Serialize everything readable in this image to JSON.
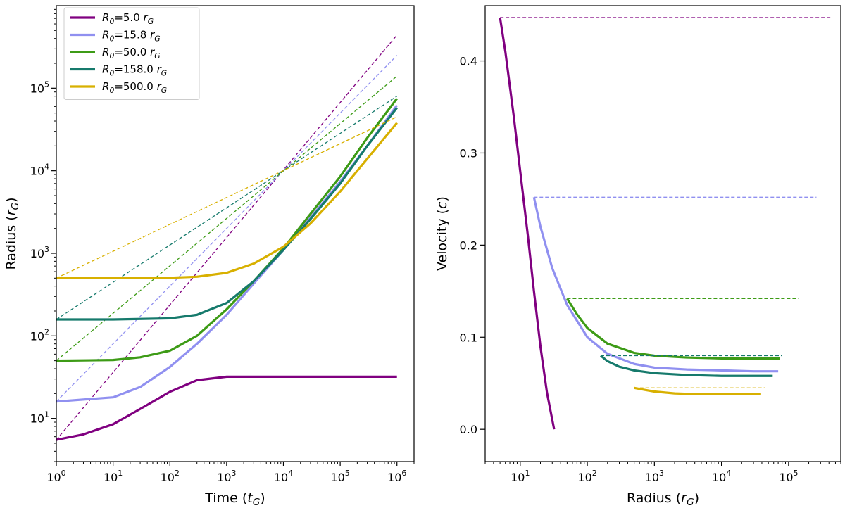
{
  "chart_data": [
    {
      "type": "line",
      "xlabel": "Time ($t_G$)",
      "ylabel": "Radius ($r_G$)",
      "xscale": "log",
      "yscale": "log",
      "xlim": [
        1,
        2000000
      ],
      "ylim": [
        3,
        1000000
      ],
      "xticks": [
        {
          "value": 1,
          "base": "10",
          "exp": "0"
        },
        {
          "value": 10,
          "base": "10",
          "exp": "1"
        },
        {
          "value": 100,
          "base": "10",
          "exp": "2"
        },
        {
          "value": 1000,
          "base": "10",
          "exp": "3"
        },
        {
          "value": 10000,
          "base": "10",
          "exp": "4"
        },
        {
          "value": 100000,
          "base": "10",
          "exp": "5"
        },
        {
          "value": 1000000,
          "base": "10",
          "exp": "6"
        }
      ],
      "yticks": [
        {
          "value": 10,
          "base": "10",
          "exp": "1"
        },
        {
          "value": 100,
          "base": "10",
          "exp": "2"
        },
        {
          "value": 1000,
          "base": "10",
          "exp": "3"
        },
        {
          "value": 10000,
          "base": "10",
          "exp": "4"
        },
        {
          "value": 100000,
          "base": "10",
          "exp": "5"
        }
      ],
      "legend": {
        "placement": "upper-left"
      },
      "series": [
        {
          "name": "$R_0$=5.0 $r_G$",
          "color": "#800080",
          "dashed_end": 440000,
          "x": [
            1,
            3,
            10,
            30,
            100,
            300,
            1000,
            100000,
            1000000
          ],
          "y": [
            5.5,
            6.4,
            8.5,
            13,
            21,
            29,
            32,
            32,
            32
          ]
        },
        {
          "name": "$R_0$=15.8 $r_G$",
          "color": "#9090f0",
          "dashed_end": 250000,
          "x": [
            1,
            10,
            30,
            100,
            300,
            1000,
            3000,
            10000,
            30000,
            100000,
            300000,
            1000000
          ],
          "y": [
            16,
            18,
            24,
            42,
            80,
            180,
            430,
            1100,
            2700,
            7400,
            20000,
            62000
          ]
        },
        {
          "name": "$R_0$=50.0 $r_G$",
          "color": "#3d9b16",
          "dashed_end": 140000,
          "x": [
            1,
            10,
            30,
            100,
            300,
            1000,
            3000,
            10000,
            30000,
            100000,
            300000,
            1000000
          ],
          "y": [
            50,
            51,
            55,
            66,
            100,
            210,
            460,
            1150,
            3000,
            8500,
            25000,
            75000
          ]
        },
        {
          "name": "$R_0$=158.0 $r_G$",
          "color": "#167a6c",
          "dashed_end": 80000,
          "x": [
            1,
            10,
            100,
            300,
            1000,
            3000,
            10000,
            30000,
            100000,
            300000,
            1000000
          ],
          "y": [
            158,
            158,
            163,
            180,
            250,
            460,
            1100,
            2600,
            7000,
            20000,
            58000
          ]
        },
        {
          "name": "$R_0$=500.0 $r_G$",
          "color": "#d8b000",
          "dashed_end": 45000,
          "x": [
            1,
            10,
            100,
            300,
            1000,
            3000,
            10000,
            30000,
            100000,
            300000,
            1000000
          ],
          "y": [
            500,
            500,
            505,
            520,
            580,
            750,
            1200,
            2300,
            5600,
            14000,
            38000
          ]
        }
      ]
    },
    {
      "type": "line",
      "xlabel": "Radius ($r_G$)",
      "ylabel": "Velocity ($c$)",
      "xscale": "log",
      "yscale": "linear",
      "xlim": [
        3,
        600000
      ],
      "ylim": [
        -0.035,
        0.46
      ],
      "xticks": [
        {
          "value": 10,
          "base": "10",
          "exp": "1"
        },
        {
          "value": 100,
          "base": "10",
          "exp": "2"
        },
        {
          "value": 1000,
          "base": "10",
          "exp": "3"
        },
        {
          "value": 10000,
          "base": "10",
          "exp": "4"
        },
        {
          "value": 100000,
          "base": "10",
          "exp": "5"
        }
      ],
      "yticks": [
        {
          "value": 0.0,
          "label": "0.0"
        },
        {
          "value": 0.1,
          "label": "0.1"
        },
        {
          "value": 0.2,
          "label": "0.2"
        },
        {
          "value": 0.3,
          "label": "0.3"
        },
        {
          "value": 0.4,
          "label": "0.4"
        }
      ],
      "series": [
        {
          "name": "$R_0$=5.0 $r_G$",
          "color": "#800080",
          "x": [
            5,
            6,
            8,
            10,
            13,
            16,
            20,
            25,
            32
          ],
          "y": [
            0.447,
            0.41,
            0.34,
            0.28,
            0.21,
            0.15,
            0.09,
            0.04,
            0.0
          ],
          "asymptote": {
            "y": 0.447,
            "x_start": 5,
            "x_end": 450000
          }
        },
        {
          "name": "$R_0$=15.8 $r_G$",
          "color": "#9090f0",
          "x": [
            16,
            20,
            30,
            50,
            100,
            200,
            500,
            1000,
            3000,
            10000,
            30000,
            70000
          ],
          "y": [
            0.252,
            0.22,
            0.175,
            0.135,
            0.1,
            0.082,
            0.071,
            0.067,
            0.065,
            0.064,
            0.063,
            0.063
          ],
          "asymptote": {
            "y": 0.252,
            "x_start": 16,
            "x_end": 260000
          }
        },
        {
          "name": "$R_0$=50.0 $r_G$",
          "color": "#3d9b16",
          "x": [
            50,
            70,
            100,
            200,
            500,
            1000,
            3000,
            10000,
            30000,
            75000
          ],
          "y": [
            0.142,
            0.125,
            0.11,
            0.093,
            0.083,
            0.08,
            0.078,
            0.077,
            0.077,
            0.077
          ],
          "asymptote": {
            "y": 0.142,
            "x_start": 50,
            "x_end": 140000
          }
        },
        {
          "name": "$R_0$=158.0 $r_G$",
          "color": "#167a6c",
          "x": [
            158,
            200,
            300,
            500,
            1000,
            3000,
            10000,
            30000,
            58000
          ],
          "y": [
            0.08,
            0.074,
            0.068,
            0.064,
            0.061,
            0.059,
            0.058,
            0.058,
            0.058
          ],
          "asymptote": {
            "y": 0.08,
            "x_start": 158,
            "x_end": 80000
          }
        },
        {
          "name": "$R_0$=500.0 $r_G$",
          "color": "#d8b000",
          "x": [
            500,
            700,
            1000,
            2000,
            5000,
            10000,
            20000,
            38000
          ],
          "y": [
            0.045,
            0.043,
            0.041,
            0.039,
            0.038,
            0.038,
            0.038,
            0.038
          ],
          "asymptote": {
            "y": 0.045,
            "x_start": 500,
            "x_end": 45000
          }
        }
      ]
    }
  ]
}
